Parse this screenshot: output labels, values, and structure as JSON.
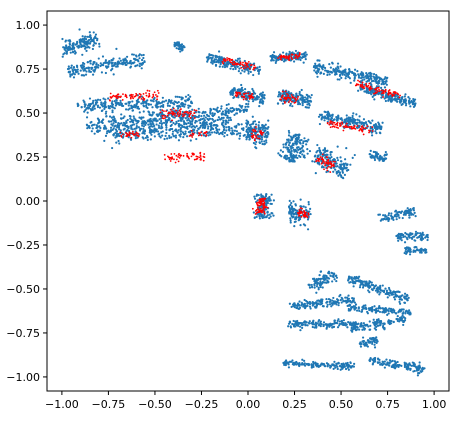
{
  "chart_data": {
    "type": "scatter",
    "title": "",
    "xlabel": "",
    "ylabel": "",
    "xlim": [
      -1.08,
      1.08
    ],
    "ylim": [
      -1.08,
      1.08
    ],
    "x_ticks": [
      -1.0,
      -0.75,
      -0.5,
      -0.25,
      0.0,
      0.25,
      0.5,
      0.75,
      1.0
    ],
    "x_tick_labels": [
      "−1.00",
      "−0.75",
      "−0.50",
      "−0.25",
      "0.00",
      "0.25",
      "0.50",
      "0.75",
      "1.00"
    ],
    "y_ticks": [
      1.0,
      0.75,
      0.5,
      0.25,
      0.0,
      -0.25,
      -0.5,
      -0.75,
      -1.0
    ],
    "y_tick_labels": [
      "1.00",
      "0.75",
      "0.50",
      "0.25",
      "0.00",
      "−0.25",
      "−0.50",
      "−0.75",
      "−1.00"
    ],
    "grid": false,
    "legend": "none",
    "series": [
      {
        "color": "#1f77b4",
        "values_description_free": true,
        "clusters": [
          {
            "cx": -0.93,
            "cy": 0.88,
            "w": 0.08,
            "h": 0.26,
            "angle": -70,
            "n": 180
          },
          {
            "cx": -0.76,
            "cy": 0.77,
            "w": 0.08,
            "h": 0.42,
            "angle": -80,
            "n": 200
          },
          {
            "cx": -0.61,
            "cy": 0.55,
            "w": 0.08,
            "h": 0.62,
            "angle": -88,
            "n": 260
          },
          {
            "cx": -0.48,
            "cy": 0.45,
            "w": 0.09,
            "h": 0.78,
            "angle": -88,
            "n": 320
          },
          {
            "cx": -0.35,
            "cy": 0.4,
            "w": 0.1,
            "h": 0.85,
            "angle": -88,
            "n": 340
          },
          {
            "cx": -0.27,
            "cy": 0.5,
            "w": 0.06,
            "h": 0.55,
            "angle": -85,
            "n": 160
          },
          {
            "cx": -0.37,
            "cy": 0.88,
            "w": 0.06,
            "h": 0.04,
            "angle": -20,
            "n": 40
          },
          {
            "cx": -0.08,
            "cy": 0.78,
            "w": 0.3,
            "h": 0.06,
            "angle": -15,
            "n": 160
          },
          {
            "cx": 0.22,
            "cy": 0.82,
            "w": 0.2,
            "h": 0.05,
            "angle": 5,
            "n": 120
          },
          {
            "cx": 0.55,
            "cy": 0.72,
            "w": 0.4,
            "h": 0.07,
            "angle": -12,
            "n": 220
          },
          {
            "cx": 0.75,
            "cy": 0.6,
            "w": 0.32,
            "h": 0.06,
            "angle": -18,
            "n": 180
          },
          {
            "cx": 0.0,
            "cy": 0.6,
            "w": 0.2,
            "h": 0.07,
            "angle": -15,
            "n": 140
          },
          {
            "cx": 0.25,
            "cy": 0.58,
            "w": 0.18,
            "h": 0.08,
            "angle": -10,
            "n": 140
          },
          {
            "cx": 0.55,
            "cy": 0.45,
            "w": 0.35,
            "h": 0.07,
            "angle": -12,
            "n": 200
          },
          {
            "cx": 0.05,
            "cy": 0.38,
            "w": 0.12,
            "h": 0.12,
            "angle": 0,
            "n": 110
          },
          {
            "cx": 0.25,
            "cy": 0.3,
            "w": 0.14,
            "h": 0.16,
            "angle": -30,
            "n": 160
          },
          {
            "cx": 0.45,
            "cy": 0.22,
            "w": 0.2,
            "h": 0.12,
            "angle": -30,
            "n": 160
          },
          {
            "cx": 0.7,
            "cy": 0.25,
            "w": 0.1,
            "h": 0.05,
            "angle": -10,
            "n": 50
          },
          {
            "cx": 0.08,
            "cy": -0.03,
            "w": 0.1,
            "h": 0.14,
            "angle": 0,
            "n": 120
          },
          {
            "cx": 0.28,
            "cy": -0.07,
            "w": 0.12,
            "h": 0.12,
            "angle": 0,
            "n": 110
          },
          {
            "cx": 0.8,
            "cy": -0.08,
            "w": 0.2,
            "h": 0.05,
            "angle": 15,
            "n": 90
          },
          {
            "cx": 0.88,
            "cy": -0.2,
            "w": 0.18,
            "h": 0.05,
            "angle": 0,
            "n": 80
          },
          {
            "cx": 0.9,
            "cy": -0.28,
            "w": 0.12,
            "h": 0.04,
            "angle": 0,
            "n": 50
          },
          {
            "cx": 0.4,
            "cy": -0.45,
            "w": 0.08,
            "h": 0.16,
            "angle": -60,
            "n": 90
          },
          {
            "cx": 0.7,
            "cy": -0.5,
            "w": 0.35,
            "h": 0.05,
            "angle": -20,
            "n": 170
          },
          {
            "cx": 0.4,
            "cy": -0.58,
            "w": 0.35,
            "h": 0.05,
            "angle": 5,
            "n": 150
          },
          {
            "cx": 0.7,
            "cy": -0.62,
            "w": 0.35,
            "h": 0.04,
            "angle": -5,
            "n": 140
          },
          {
            "cx": 0.4,
            "cy": -0.7,
            "w": 0.38,
            "h": 0.04,
            "angle": 0,
            "n": 150
          },
          {
            "cx": 0.7,
            "cy": -0.7,
            "w": 0.3,
            "h": 0.05,
            "angle": 10,
            "n": 120
          },
          {
            "cx": 0.65,
            "cy": -0.8,
            "w": 0.1,
            "h": 0.05,
            "angle": 20,
            "n": 50
          },
          {
            "cx": 0.38,
            "cy": -0.93,
            "w": 0.38,
            "h": 0.04,
            "angle": -3,
            "n": 150
          },
          {
            "cx": 0.8,
            "cy": -0.93,
            "w": 0.3,
            "h": 0.05,
            "angle": -10,
            "n": 130
          }
        ]
      },
      {
        "color": "#ff0000",
        "clusters": [
          {
            "cx": -0.61,
            "cy": 0.6,
            "w": 0.05,
            "h": 0.28,
            "angle": -88,
            "n": 70
          },
          {
            "cx": -0.63,
            "cy": 0.38,
            "w": 0.04,
            "h": 0.12,
            "angle": -88,
            "n": 30
          },
          {
            "cx": -0.37,
            "cy": 0.5,
            "w": 0.06,
            "h": 0.2,
            "angle": -88,
            "n": 60
          },
          {
            "cx": -0.34,
            "cy": 0.25,
            "w": 0.05,
            "h": 0.22,
            "angle": -88,
            "n": 60
          },
          {
            "cx": -0.27,
            "cy": 0.38,
            "w": 0.03,
            "h": 0.1,
            "angle": -85,
            "n": 20
          },
          {
            "cx": -0.05,
            "cy": 0.78,
            "w": 0.2,
            "h": 0.04,
            "angle": -12,
            "n": 60
          },
          {
            "cx": 0.22,
            "cy": 0.82,
            "w": 0.12,
            "h": 0.03,
            "angle": 5,
            "n": 50
          },
          {
            "cx": 0.7,
            "cy": 0.63,
            "w": 0.25,
            "h": 0.04,
            "angle": -15,
            "n": 80
          },
          {
            "cx": -0.02,
            "cy": 0.6,
            "w": 0.1,
            "h": 0.04,
            "angle": -15,
            "n": 40
          },
          {
            "cx": 0.22,
            "cy": 0.58,
            "w": 0.1,
            "h": 0.05,
            "angle": -15,
            "n": 40
          },
          {
            "cx": 0.55,
            "cy": 0.42,
            "w": 0.25,
            "h": 0.04,
            "angle": -10,
            "n": 70
          },
          {
            "cx": 0.05,
            "cy": 0.38,
            "w": 0.07,
            "h": 0.06,
            "angle": 0,
            "n": 30
          },
          {
            "cx": 0.42,
            "cy": 0.22,
            "w": 0.1,
            "h": 0.06,
            "angle": -35,
            "n": 50
          },
          {
            "cx": 0.07,
            "cy": -0.03,
            "w": 0.07,
            "h": 0.09,
            "angle": 0,
            "n": 70
          },
          {
            "cx": 0.3,
            "cy": -0.07,
            "w": 0.06,
            "h": 0.05,
            "angle": -30,
            "n": 40
          }
        ]
      }
    ]
  }
}
